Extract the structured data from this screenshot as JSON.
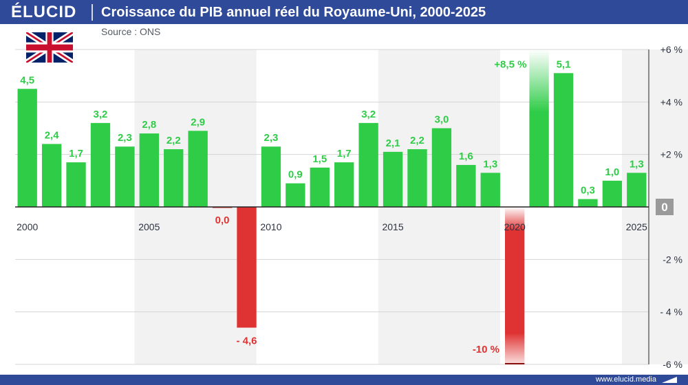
{
  "header": {
    "logo": "ÉLUCID",
    "title": "Croissance du PIB annuel réel du Royaume-Uni, 2000-2025",
    "source": "Source : ONS"
  },
  "footer": {
    "url": "www.elucid.media"
  },
  "flag_icon": "uk-flag-icon",
  "colors": {
    "positive": "#2ecc47",
    "negative": "#df3232",
    "brand": "#2f4a99",
    "grid": "#d5d5d5",
    "band": "#f2f2f2"
  },
  "chart_data": {
    "type": "bar",
    "title": "Croissance du PIB annuel réel du Royaume-Uni, 2000-2025",
    "source": "Source : ONS",
    "categories": [
      "2000",
      "2001",
      "2002",
      "2003",
      "2004",
      "2005",
      "2006",
      "2007",
      "2008",
      "2009",
      "2010",
      "2011",
      "2012",
      "2013",
      "2014",
      "2015",
      "2016",
      "2017",
      "2018",
      "2019",
      "2020",
      "2021",
      "2022",
      "2023",
      "2024",
      "2025"
    ],
    "values": [
      4.5,
      2.4,
      1.7,
      3.2,
      2.3,
      2.8,
      2.2,
      2.9,
      0.0,
      -4.6,
      2.3,
      0.9,
      1.5,
      1.7,
      3.2,
      2.1,
      2.2,
      3.0,
      1.6,
      1.3,
      -10,
      8.5,
      5.1,
      0.3,
      1.0,
      1.3
    ],
    "data_labels": [
      "4,5",
      "2,4",
      "1,7",
      "3,2",
      "2,3",
      "2,8",
      "2,2",
      "2,9",
      "0,0",
      "- 4,6",
      "2,3",
      "0,9",
      "1,5",
      "1,7",
      "3,2",
      "2,1",
      "2,2",
      "3,0",
      "1,6",
      "1,3",
      "-10 %",
      "+8,5 %",
      "5,1",
      "0,3",
      "1,0",
      "1,3"
    ],
    "clipped_years": [
      "2020",
      "2021"
    ],
    "x_tick_labels": [
      "2000",
      "2005",
      "2010",
      "2015",
      "2020",
      "2025"
    ],
    "y_ticks": [
      6,
      4,
      2,
      0,
      -2,
      -4,
      -6
    ],
    "y_tick_labels": [
      "+6 %",
      "+4 %",
      "+2 %",
      "0",
      "-2 %",
      "- 4 %",
      "-6 %"
    ],
    "ylim": [
      -6,
      6
    ],
    "y_axis_position": "right",
    "grid": true
  }
}
